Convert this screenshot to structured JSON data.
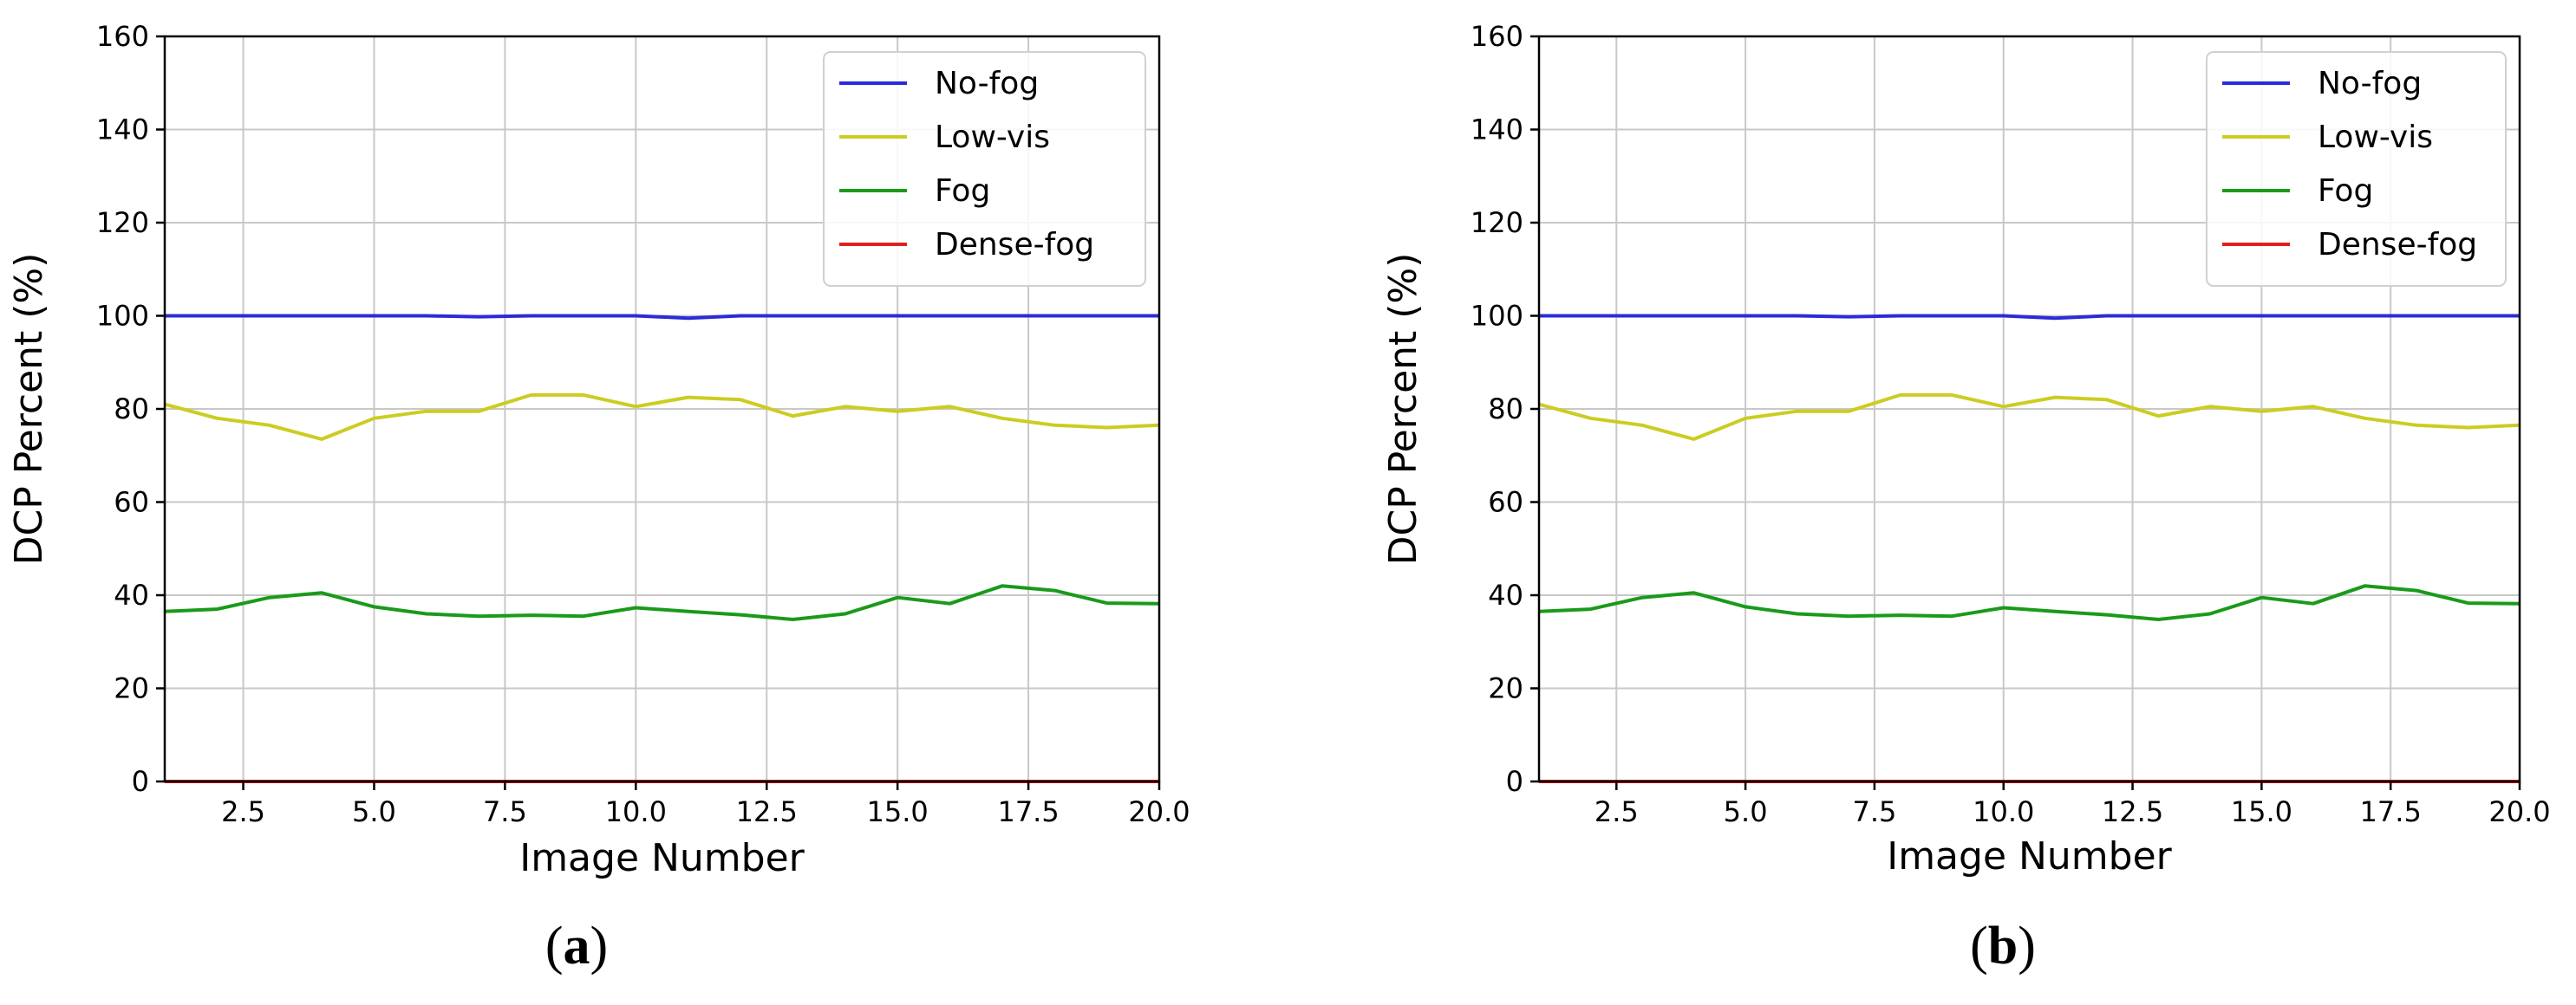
{
  "figure": {
    "panels": [
      {
        "caption_open": "(",
        "caption_letter": "a",
        "caption_close": ")"
      },
      {
        "caption_open": "(",
        "caption_letter": "b",
        "caption_close": ")"
      }
    ]
  },
  "chart_data": [
    {
      "type": "line",
      "title": "",
      "xlabel": "Image Number",
      "ylabel": "DCP Percent (%)",
      "xlim": [
        1,
        20
      ],
      "ylim": [
        0,
        160
      ],
      "xticks": [
        "2.5",
        "5.0",
        "7.5",
        "10.0",
        "12.5",
        "15.0",
        "17.5",
        "20.0"
      ],
      "yticks": [
        "0",
        "20",
        "40",
        "60",
        "80",
        "100",
        "120",
        "140",
        "160"
      ],
      "grid": true,
      "legend_position": "top-right",
      "x": [
        1,
        2,
        3,
        4,
        5,
        6,
        7,
        8,
        9,
        10,
        11,
        12,
        13,
        14,
        15,
        16,
        17,
        18,
        19,
        20
      ],
      "series": [
        {
          "name": "No-fog",
          "color": "#2b2bd9",
          "values": [
            100,
            100,
            100,
            100,
            100,
            100,
            99.8,
            100,
            100,
            100,
            99.5,
            100,
            100,
            100,
            100,
            100,
            100,
            100,
            100,
            100
          ]
        },
        {
          "name": "Low-vis",
          "color": "#cccc22",
          "values": [
            81,
            78,
            76.5,
            73.5,
            78,
            79.5,
            79.5,
            83,
            83,
            80.5,
            82.5,
            82,
            78.5,
            80.5,
            79.5,
            80.5,
            78,
            76.5,
            76,
            76.5
          ]
        },
        {
          "name": "Fog",
          "color": "#1a9a1a",
          "values": [
            36.5,
            37,
            39.5,
            40.5,
            37.5,
            36,
            35.5,
            35.7,
            35.5,
            37.3,
            36.5,
            35.8,
            34.8,
            36,
            39.5,
            38.2,
            42,
            41,
            38.3,
            38.2
          ]
        },
        {
          "name": "Dense-fog",
          "color": "#e02020",
          "values": [
            0,
            0,
            0,
            0,
            0,
            0,
            0,
            0,
            0,
            0,
            0,
            0,
            0,
            0,
            0,
            0,
            0,
            0,
            0,
            0
          ]
        }
      ]
    },
    {
      "type": "line",
      "title": "",
      "xlabel": "Image Number",
      "ylabel": "DCP Percent (%)",
      "xlim": [
        1,
        20
      ],
      "ylim": [
        0,
        160
      ],
      "xticks": [
        "2.5",
        "5.0",
        "7.5",
        "10.0",
        "12.5",
        "15.0",
        "17.5",
        "20.0"
      ],
      "yticks": [
        "0",
        "20",
        "40",
        "60",
        "80",
        "100",
        "120",
        "140",
        "160"
      ],
      "grid": true,
      "legend_position": "top-right",
      "x": [
        1,
        2,
        3,
        4,
        5,
        6,
        7,
        8,
        9,
        10,
        11,
        12,
        13,
        14,
        15,
        16,
        17,
        18,
        19,
        20
      ],
      "series": [
        {
          "name": "No-fog",
          "color": "#2b2bd9",
          "values": [
            100,
            100,
            100,
            100,
            100,
            100,
            99.8,
            100,
            100,
            100,
            99.5,
            100,
            100,
            100,
            100,
            100,
            100,
            100,
            100,
            100
          ]
        },
        {
          "name": "Low-vis",
          "color": "#cccc22",
          "values": [
            81,
            78,
            76.5,
            73.5,
            78,
            79.5,
            79.5,
            83,
            83,
            80.5,
            82.5,
            82,
            78.5,
            80.5,
            79.5,
            80.5,
            78,
            76.5,
            76,
            76.5
          ]
        },
        {
          "name": "Fog",
          "color": "#1a9a1a",
          "values": [
            36.5,
            37,
            39.5,
            40.5,
            37.5,
            36,
            35.5,
            35.7,
            35.5,
            37.3,
            36.5,
            35.8,
            34.8,
            36,
            39.5,
            38.2,
            42,
            41,
            38.3,
            38.2
          ]
        },
        {
          "name": "Dense-fog",
          "color": "#e02020",
          "values": [
            0,
            0,
            0,
            0,
            0,
            0,
            0,
            0,
            0,
            0,
            0,
            0,
            0,
            0,
            0,
            0,
            0,
            0,
            0,
            0
          ]
        }
      ]
    }
  ]
}
